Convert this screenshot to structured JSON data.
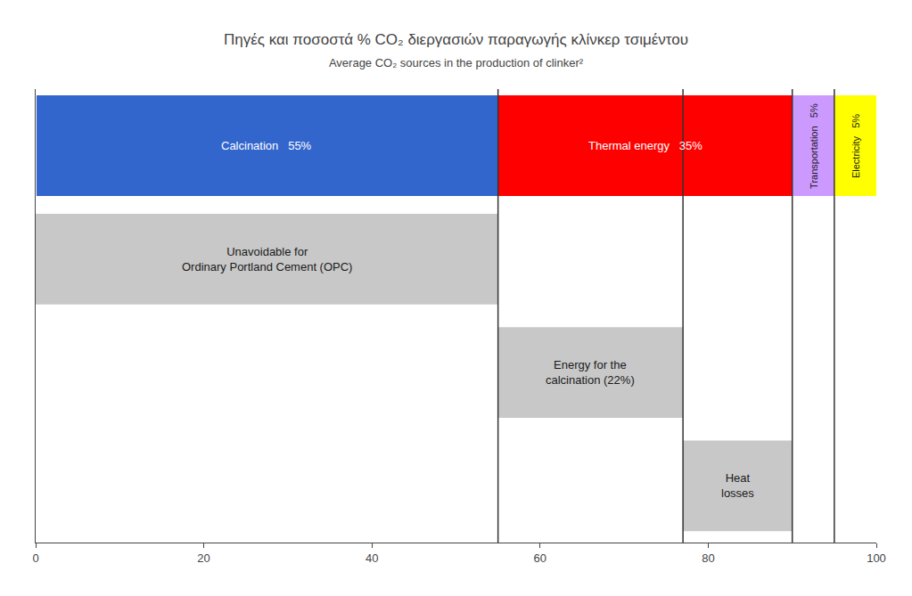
{
  "chart_data": {
    "type": "bar",
    "orientation": "horizontal",
    "stacked": true,
    "title": "Πηγές και ποσοστά % CO₂ διεργασιών παραγωγής κλίνκερ τσιμέντου",
    "subtitle": "Average CO₂ sources in the production of clinker²",
    "categories": [
      null,
      null,
      null,
      null
    ],
    "series": [
      {
        "type": "bar",
        "color": "#3366cc",
        "values": [
          55,
          null,
          null,
          null
        ],
        "value_labels": [
          "Calcination   55%",
          null,
          null,
          null
        ]
      },
      {
        "type": "bar",
        "color": "#ff0000",
        "values": [
          35,
          null,
          null,
          null
        ],
        "value_labels": [
          "Thermal energy   35%",
          null,
          null,
          null
        ]
      },
      {
        "type": "bar",
        "color": "#cc99ff",
        "values": [
          5,
          null,
          null,
          null
        ],
        "value_labels": [
          "Transportation   5%",
          null,
          null,
          null
        ]
      },
      {
        "type": "bar",
        "color": "#ffff00",
        "values": [
          5,
          null,
          null,
          null
        ],
        "value_labels": [
          "Electricity   5%",
          null,
          null,
          null
        ]
      },
      {
        "type": "waterfall",
        "color": "#c8c8c8",
        "values": [
          null,
          55,
          22,
          13
        ],
        "value_labels": [
          null,
          "Unavoidable for\nOrdinary Portland Cement (OPC)",
          "Energy for the\ncalcination (22%)",
          "Heat\nlosses"
        ]
      }
    ],
    "xlim": [
      0,
      100
    ],
    "xticks": [
      0,
      20,
      40,
      60,
      80,
      100
    ],
    "grid": false,
    "data_labels": true,
    "tick_labels": "x"
  }
}
